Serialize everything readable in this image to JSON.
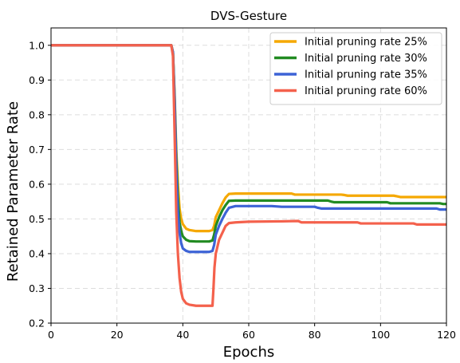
{
  "chart_data": {
    "type": "line",
    "title": "DVS-Gesture",
    "xlabel": "Epochs",
    "ylabel": "Retained Parameter Rate",
    "xlim": [
      0,
      120
    ],
    "ylim": [
      0.2,
      1.05
    ],
    "xticks": [
      "0",
      "20",
      "40",
      "60",
      "80",
      "100",
      "120"
    ],
    "yticks": [
      "0.2",
      "0.3",
      "0.4",
      "0.5",
      "0.6",
      "0.7",
      "0.8",
      "0.9",
      "1.0"
    ],
    "grid": true,
    "legend_position": "top-right",
    "series": [
      {
        "name": "Initial pruning rate 25%",
        "color": "#f5a800",
        "x": [
          0,
          36.5,
          37,
          37.5,
          38,
          38.5,
          39,
          39.5,
          40,
          41,
          42,
          44,
          46,
          48,
          49,
          49.5,
          50,
          51,
          52,
          53,
          54,
          56,
          60,
          70,
          72,
          73,
          74,
          80,
          88,
          89,
          90,
          100,
          104,
          105,
          106,
          110,
          116,
          120
        ],
        "y": [
          1.0,
          1.0,
          0.98,
          0.86,
          0.7,
          0.6,
          0.53,
          0.5,
          0.485,
          0.472,
          0.468,
          0.465,
          0.465,
          0.465,
          0.468,
          0.48,
          0.505,
          0.525,
          0.545,
          0.562,
          0.572,
          0.573,
          0.573,
          0.573,
          0.573,
          0.573,
          0.57,
          0.57,
          0.57,
          0.569,
          0.567,
          0.567,
          0.567,
          0.565,
          0.563,
          0.563,
          0.563,
          0.563
        ]
      },
      {
        "name": "Initial pruning rate 30%",
        "color": "#228b22",
        "x": [
          0,
          36.5,
          37,
          37.5,
          38,
          38.5,
          39,
          39.5,
          40,
          41,
          42,
          44,
          46,
          48,
          49,
          49.5,
          50,
          51,
          52,
          53,
          54,
          56,
          60,
          70,
          80,
          84,
          85,
          86,
          100,
          102,
          103,
          104,
          110,
          118,
          119,
          120
        ],
        "y": [
          1.0,
          1.0,
          0.98,
          0.85,
          0.68,
          0.56,
          0.49,
          0.465,
          0.45,
          0.44,
          0.436,
          0.435,
          0.435,
          0.435,
          0.438,
          0.455,
          0.48,
          0.505,
          0.525,
          0.54,
          0.552,
          0.553,
          0.553,
          0.553,
          0.553,
          0.553,
          0.55,
          0.548,
          0.548,
          0.548,
          0.545,
          0.545,
          0.545,
          0.545,
          0.543,
          0.543
        ]
      },
      {
        "name": "Initial pruning rate 35%",
        "color": "#3d63d6",
        "x": [
          0,
          36.5,
          37,
          37.5,
          38,
          38.5,
          39,
          39.5,
          40,
          41,
          42,
          44,
          46,
          48,
          49,
          49.5,
          50,
          51,
          52,
          53,
          54,
          56,
          60,
          66,
          67,
          70,
          80,
          81,
          82,
          100,
          117,
          118,
          120
        ],
        "y": [
          1.0,
          1.0,
          0.98,
          0.84,
          0.65,
          0.52,
          0.46,
          0.43,
          0.415,
          0.408,
          0.405,
          0.405,
          0.405,
          0.405,
          0.408,
          0.425,
          0.455,
          0.48,
          0.5,
          0.518,
          0.532,
          0.537,
          0.537,
          0.537,
          0.537,
          0.535,
          0.535,
          0.532,
          0.53,
          0.53,
          0.53,
          0.527,
          0.527
        ]
      },
      {
        "name": "Initial pruning rate 60%",
        "color": "#f4614c",
        "x": [
          0,
          36.5,
          37,
          37.5,
          38,
          38.5,
          39,
          39.5,
          40,
          41,
          42,
          44,
          46,
          48,
          49,
          49.3,
          49.6,
          50,
          50.5,
          51,
          52,
          53,
          54,
          56,
          60,
          70,
          75,
          76,
          80,
          93,
          94,
          100,
          110,
          111,
          120
        ],
        "y": [
          1.0,
          1.0,
          0.97,
          0.75,
          0.52,
          0.4,
          0.33,
          0.29,
          0.27,
          0.257,
          0.253,
          0.25,
          0.25,
          0.25,
          0.25,
          0.3,
          0.36,
          0.4,
          0.42,
          0.44,
          0.46,
          0.48,
          0.488,
          0.49,
          0.492,
          0.493,
          0.494,
          0.49,
          0.49,
          0.49,
          0.487,
          0.487,
          0.487,
          0.484,
          0.484
        ]
      }
    ]
  }
}
